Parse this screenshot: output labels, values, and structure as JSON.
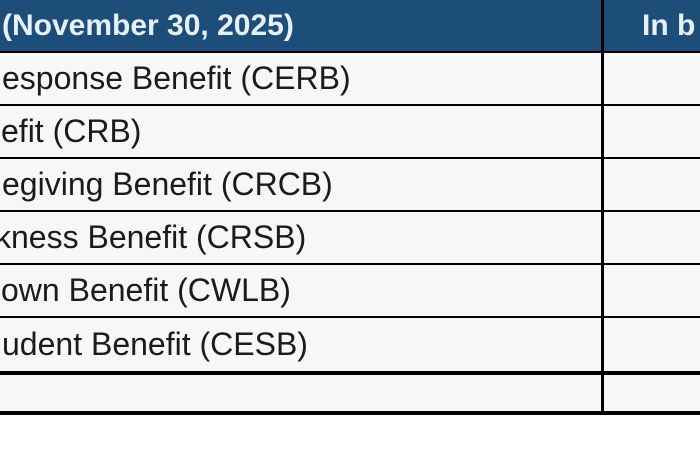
{
  "table": {
    "header": {
      "date_label": "(November 30, 2025)",
      "value_column_label": "In b"
    },
    "rows": [
      {
        "label": "esponse Benefit (CERB)",
        "value": ""
      },
      {
        "label": "efit (CRB)",
        "value": ""
      },
      {
        "label": "egiving Benefit (CRCB)",
        "value": ""
      },
      {
        "label": "kness Benefit (CRSB)",
        "value": ""
      },
      {
        "label": "own Benefit (CWLB)",
        "value": ""
      },
      {
        "label": "udent Benefit (CESB)",
        "value": ""
      }
    ],
    "empty_row": {
      "label": "",
      "value": ""
    },
    "colors": {
      "header_bg": "#1D4E79",
      "header_text": "#E6F0F8",
      "row_bg": "#F7F7F5",
      "body_text": "#1B1B1B",
      "border": "#000000"
    }
  }
}
